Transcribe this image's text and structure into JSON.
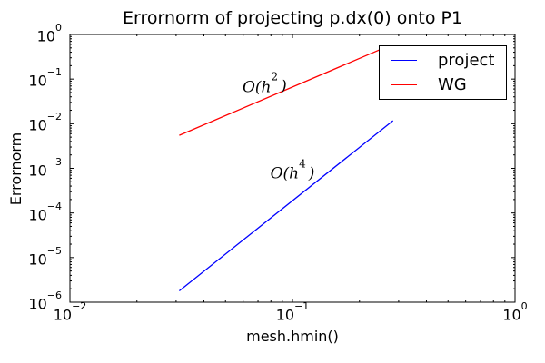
{
  "chart_data": {
    "type": "line",
    "title": "Errornorm of projecting p.dx(0) onto P1",
    "xlabel": "mesh.hmin()",
    "ylabel": "Errornorm",
    "x_scale": "log",
    "y_scale": "log",
    "xlim": [
      0.01,
      1
    ],
    "ylim": [
      1e-06,
      1
    ],
    "x_tick_exponents": [
      -2,
      -1,
      0
    ],
    "y_tick_exponents": [
      0,
      -1,
      -2,
      -3,
      -4,
      -5,
      -6
    ],
    "grid": false,
    "background_color": "#ffffff",
    "frame_color": "#000000",
    "series": [
      {
        "name": "project",
        "color": "#0000ff",
        "x": [
          0.031,
          0.283
        ],
        "y": [
          1.8e-06,
          0.0117
        ]
      },
      {
        "name": "WG",
        "color": "#ff0000",
        "x": [
          0.031,
          0.258
        ],
        "y": [
          0.0055,
          0.5
        ]
      }
    ],
    "annotations": [
      {
        "prefix": "O(h",
        "exponent": "2",
        "suffix": ")",
        "x": 0.075,
        "y": 0.07
      },
      {
        "prefix": "O(h",
        "exponent": "4",
        "suffix": ")",
        "x": 0.1,
        "y": 0.0008
      }
    ],
    "legend": {
      "position": "upper right",
      "entries": [
        {
          "label": "project",
          "color": "#0000ff"
        },
        {
          "label": "WG",
          "color": "#ff0000"
        }
      ]
    }
  }
}
